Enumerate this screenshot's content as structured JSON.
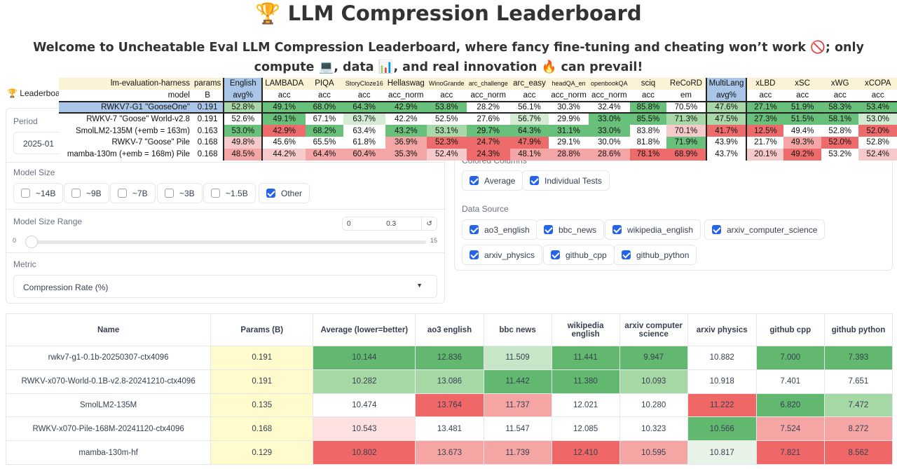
{
  "header": {
    "title": "🏆 LLM Compression Leaderboard",
    "subtitle": "Welcome to Uncheatable Eval LLM Compression Leaderboard, where fancy fine-tuning and cheating won’t work 🚫; only compute 💻, data 📊, and real innovation 🔥 can prevail!"
  },
  "tab": {
    "label": "🏆 Leaderboar"
  },
  "controls": {
    "period_label": "Period",
    "period_value": "2025-01",
    "model_size_label": "Model Size",
    "model_sizes": [
      {
        "label": "~14B",
        "checked": false
      },
      {
        "label": "~9B",
        "checked": false
      },
      {
        "label": "~7B",
        "checked": false
      },
      {
        "label": "~3B",
        "checked": false
      },
      {
        "label": "~1.5B",
        "checked": false
      },
      {
        "label": "Other",
        "checked": true
      }
    ],
    "range_label": "Model Size Range",
    "range_min": "0",
    "range_max": "0.3",
    "range_reset_icon": "↺",
    "slider_min": "0",
    "slider_max": "15",
    "metric_label": "Metric",
    "metric_value": "Compression Rate (%)",
    "colored_label": "Colored Columns",
    "colored": [
      {
        "label": "Average",
        "checked": true
      },
      {
        "label": "Individual Tests",
        "checked": true
      }
    ],
    "source_label": "Data Source",
    "sources": [
      {
        "label": "ao3_english",
        "checked": true
      },
      {
        "label": "bbc_news",
        "checked": true
      },
      {
        "label": "wikipedia_english",
        "checked": true
      },
      {
        "label": "arxiv_computer_science",
        "checked": true
      },
      {
        "label": "arxiv_physics",
        "checked": true
      },
      {
        "label": "github_cpp",
        "checked": true
      },
      {
        "label": "github_python",
        "checked": true
      }
    ]
  },
  "overlay_table": {
    "head1": [
      "lm-evaluation-harness",
      "params",
      "English",
      "LAMBADA",
      "PIQA",
      "StoryCloze16",
      "Hellaswag",
      "WinoGrande",
      "arc_challenge",
      "arc_easy",
      "headQA_en",
      "openbookQA",
      "sciq",
      "ReCoRD",
      "MultiLang",
      "xLBD",
      "xSC",
      "xWG",
      "xCOPA"
    ],
    "head2": [
      "model",
      "B",
      "avg%",
      "acc",
      "acc",
      "acc",
      "acc_norm",
      "acc",
      "acc_norm",
      "acc",
      "acc_norm",
      "acc_norm",
      "acc",
      "em",
      "avg%",
      "acc",
      "acc",
      "acc",
      "acc"
    ],
    "rows": [
      {
        "cells": [
          "RWKV7-G1 \"GooseOne\"",
          "0.191",
          "52.8%",
          "49.1%",
          "68.0%",
          "64.3%",
          "42.9%",
          "53.8%",
          "28.2%",
          "56.1%",
          "30.3%",
          "32.4%",
          "85.8%",
          "70.5%",
          "47.6%",
          "27.1%",
          "51.9%",
          "58.3%",
          "53.4%"
        ],
        "colors": [
          "#a9c6e8",
          "#a9c6e8",
          "#a8d8a8",
          "#68c07a",
          "#68c07a",
          "#68c07a",
          "#68c07a",
          "#68c07a",
          "#ffffff",
          "#ffffff",
          "#ffffff",
          "#ffffff",
          "#68c07a",
          "#ffffff",
          "#a8d8a8",
          "#68c07a",
          "#68c07a",
          "#68c07a",
          "#68c07a"
        ]
      },
      {
        "cells": [
          "RWKV-7 \"Goose\" World-v2.8",
          "0.191",
          "52.6%",
          "49.1%",
          "67.1%",
          "63.7%",
          "42.2%",
          "52.5%",
          "27.6%",
          "56.7%",
          "29.9%",
          "33.0%",
          "85.5%",
          "71.3%",
          "47.5%",
          "27.3%",
          "51.5%",
          "58.1%",
          "53.0%"
        ],
        "colors": [
          "#ffffff",
          "#ffffff",
          "#ffffff",
          "#68c07a",
          "#ffffff",
          "#d2ebd2",
          "#ffffff",
          "#ffffff",
          "#ffffff",
          "#d2ebd2",
          "#ffffff",
          "#68c07a",
          "#68c07a",
          "#a8d8a8",
          "#a8d8a8",
          "#68c07a",
          "#68c07a",
          "#68c07a",
          "#d2ebd2"
        ]
      },
      {
        "cells": [
          "SmolLM2-135M (+emb = 163m)",
          "0.163",
          "53.0%",
          "42.9%",
          "68.2%",
          "63.4%",
          "43.2%",
          "53.1%",
          "29.7%",
          "64.3%",
          "31.1%",
          "33.0%",
          "83.8%",
          "70.1%",
          "41.7%",
          "12.5%",
          "49.4%",
          "52.8%",
          "52.0%"
        ],
        "colors": [
          "#ffffff",
          "#ffffff",
          "#68c07a",
          "#ee6b6b",
          "#68c07a",
          "#ffffff",
          "#68c07a",
          "#a8d8a8",
          "#68c07a",
          "#68c07a",
          "#68c07a",
          "#68c07a",
          "#ffffff",
          "#f6caca",
          "#ee6b6b",
          "#ee6b6b",
          "#ffffff",
          "#ffffff",
          "#ee6b6b"
        ]
      },
      {
        "cells": [
          "RWKV-7 \"Goose\" Pile",
          "0.168",
          "49.8%",
          "45.6%",
          "65.5%",
          "61.8%",
          "36.9%",
          "52.3%",
          "24.7%",
          "47.9%",
          "29.1%",
          "30.0%",
          "81.8%",
          "71.9%",
          "43.9%",
          "21.7%",
          "49.3%",
          "52.0%",
          "52.8%"
        ],
        "colors": [
          "#ffffff",
          "#ffffff",
          "#f6caca",
          "#ffffff",
          "#ffffff",
          "#ffffff",
          "#f4a6a6",
          "#ee6b6b",
          "#ee6b6b",
          "#ee6b6b",
          "#ffffff",
          "#ffffff",
          "#ffffff",
          "#68c07a",
          "#ffffff",
          "#ffffff",
          "#f4a6a6",
          "#ee6b6b",
          "#ffffff"
        ]
      },
      {
        "cells": [
          "mamba-130m (+emb = 168m) Pile",
          "0.168",
          "48.5%",
          "44.2%",
          "64.4%",
          "60.4%",
          "35.3%",
          "52.4%",
          "24.3%",
          "48.1%",
          "28.8%",
          "28.6%",
          "78.1%",
          "68.9%",
          "43.7%",
          "20.1%",
          "49.2%",
          "53.2%",
          "52.4%"
        ],
        "colors": [
          "#ffffff",
          "#ffffff",
          "#f4a6a6",
          "#f6caca",
          "#f4a6a6",
          "#f4a6a6",
          "#f4a6a6",
          "#f6caca",
          "#ee6b6b",
          "#f4a6a6",
          "#f4a6a6",
          "#f4a6a6",
          "#ee6b6b",
          "#ee6b6b",
          "#ffffff",
          "#f6caca",
          "#ee6b6b",
          "#ffffff",
          "#f6caca"
        ]
      }
    ]
  },
  "results_table": {
    "headers": [
      "Name",
      "Params (B)",
      "Average (lower=better)",
      "ao3 english",
      "bbc news",
      "wikipedia english",
      "arxiv computer science",
      "arxiv physics",
      "github cpp",
      "github python"
    ],
    "rows": [
      {
        "cells": [
          "rwkv7-g1-0.1b-20250307-ctx4096",
          "0.191",
          "10.144",
          "12.836",
          "11.509",
          "11.441",
          "9.947",
          "10.882",
          "7.000",
          "7.393"
        ],
        "colors": [
          "#ffffff",
          "#fffbcc",
          "#62b86f",
          "#62b86f",
          "#c7e6c7",
          "#62b86f",
          "#62b86f",
          "#ffffff",
          "#62b86f",
          "#62b86f"
        ]
      },
      {
        "cells": [
          "RWKV-x070-World-0.1B-v2.8-20241210-ctx4096",
          "0.191",
          "10.282",
          "13.086",
          "11.442",
          "11.380",
          "10.093",
          "10.918",
          "7.401",
          "7.651"
        ],
        "colors": [
          "#ffffff",
          "#fffbcc",
          "#a6d8a6",
          "#a6d8a6",
          "#62b86f",
          "#62b86f",
          "#a6d8a6",
          "#ffffff",
          "#ffffff",
          "#ffffff"
        ]
      },
      {
        "cells": [
          "SmolLM2-135M",
          "0.135",
          "10.474",
          "13.764",
          "11.737",
          "12.021",
          "10.280",
          "11.222",
          "6.820",
          "7.472"
        ],
        "colors": [
          "#ffffff",
          "#fffbcc",
          "#ffffff",
          "#ef6767",
          "#f6a5a5",
          "#ffffff",
          "#ffffff",
          "#ef6767",
          "#62b86f",
          "#a6d8a6"
        ]
      },
      {
        "cells": [
          "RWKV-x070-Pile-168M-20241120-ctx4096",
          "0.168",
          "10.543",
          "13.481",
          "11.547",
          "12.085",
          "10.323",
          "10.566",
          "7.524",
          "8.272"
        ],
        "colors": [
          "#ffffff",
          "#fffbcc",
          "#fde0e0",
          "#ffffff",
          "#ffffff",
          "#ffffff",
          "#ffffff",
          "#62b86f",
          "#f6a5a5",
          "#f6a5a5"
        ]
      },
      {
        "cells": [
          "mamba-130m-hf",
          "0.129",
          "10.802",
          "13.673",
          "11.739",
          "12.410",
          "10.595",
          "10.817",
          "7.821",
          "8.562"
        ],
        "colors": [
          "#ffffff",
          "#fffbcc",
          "#ef6767",
          "#f6a5a5",
          "#f6a5a5",
          "#ef6767",
          "#f6a5a5",
          "#e6f3e6",
          "#ef6767",
          "#ef6767"
        ]
      }
    ]
  }
}
